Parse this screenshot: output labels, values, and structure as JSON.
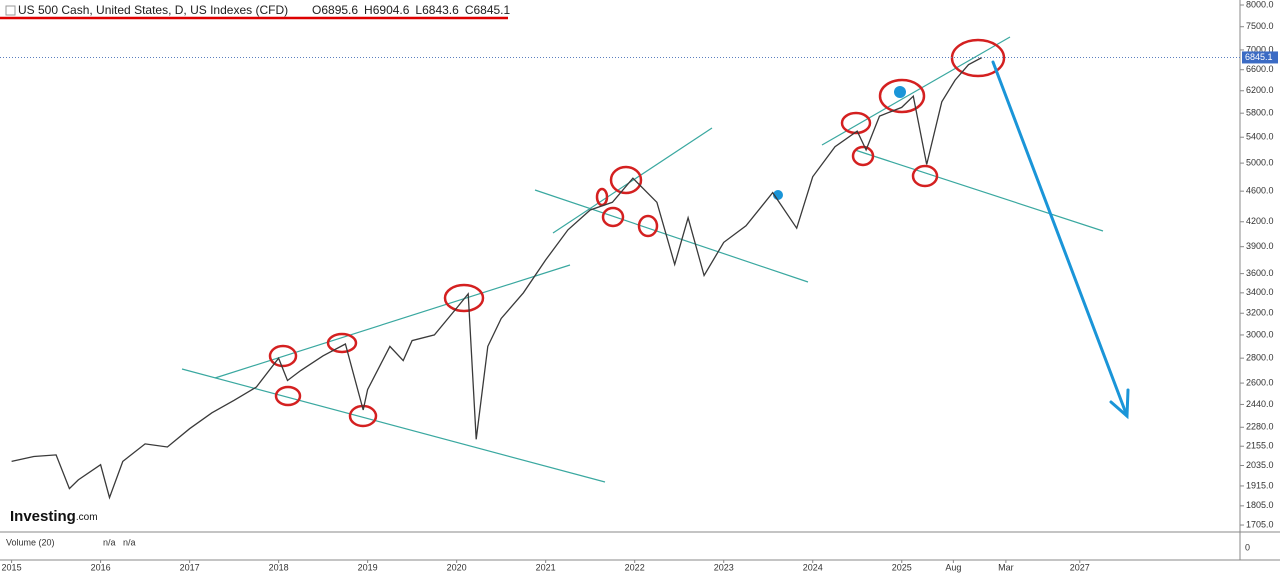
{
  "chart_data": {
    "type": "line",
    "title": "US 500 Cash, United States, D, US Indexes (CFD)",
    "ohlc": [
      {
        "label": "O",
        "value": 6895.6
      },
      {
        "label": "H",
        "value": 6904.6
      },
      {
        "label": "L",
        "value": 6843.6
      },
      {
        "label": "C",
        "value": 6845.1
      }
    ],
    "watermark": [
      "Investing",
      ".com"
    ],
    "volume": {
      "label": "Volume (20)",
      "values": [
        "n/a",
        "n/a"
      ],
      "ticks": [
        0
      ]
    },
    "yscale": "log",
    "grid": false,
    "xlim": [
      2014.87,
      2028.8
    ],
    "ylim": [
      1670,
      8120
    ],
    "xticks": [
      2015,
      2016,
      2017,
      2018,
      2019,
      2020,
      2021,
      2022,
      2023,
      2024,
      2025,
      {
        "value": 2025.58,
        "label": "Aug"
      },
      {
        "value": 2026.17,
        "label": "Mar"
      },
      2027
    ],
    "yticks": [
      {
        "value": 8000,
        "label": "8000.0"
      },
      {
        "value": 7500,
        "label": "7500.0"
      },
      {
        "value": 7000,
        "label": "7000.0"
      },
      {
        "value": 6600,
        "label": "6600.0"
      },
      {
        "value": 6200,
        "label": "6200.0"
      },
      {
        "value": 5800,
        "label": "5800.0"
      },
      {
        "value": 5400,
        "label": "5400.0"
      },
      {
        "value": 5000,
        "label": "5000.0"
      },
      {
        "value": 4600,
        "label": "4600.0"
      },
      {
        "value": 4200,
        "label": "4200.0"
      },
      {
        "value": 3900,
        "label": "3900.0"
      },
      {
        "value": 3600,
        "label": "3600.0"
      },
      {
        "value": 3400,
        "label": "3400.0"
      },
      {
        "value": 3200,
        "label": "3200.0"
      },
      {
        "value": 3000,
        "label": "3000.0"
      },
      {
        "value": 2800,
        "label": "2800.0"
      },
      {
        "value": 2600,
        "label": "2600.0"
      },
      {
        "value": 2440,
        "label": "2440.0"
      },
      {
        "value": 2280,
        "label": "2280.0"
      },
      {
        "value": 2155,
        "label": "2155.0"
      },
      {
        "value": 2035,
        "label": "2035.0"
      },
      {
        "value": 1915,
        "label": "1915.0"
      },
      {
        "value": 1805,
        "label": "1805.0"
      },
      {
        "value": 1705,
        "label": "1705.0"
      }
    ],
    "x": [
      2015.0,
      2015.25,
      2015.5,
      2015.65,
      2015.75,
      2016.0,
      2016.1,
      2016.25,
      2016.5,
      2016.75,
      2017.0,
      2017.25,
      2017.5,
      2017.75,
      2018.0,
      2018.1,
      2018.25,
      2018.5,
      2018.75,
      2018.95,
      2019.0,
      2019.25,
      2019.4,
      2019.5,
      2019.75,
      2020.0,
      2020.13,
      2020.22,
      2020.35,
      2020.5,
      2020.75,
      2021.0,
      2021.25,
      2021.5,
      2021.75,
      2021.98,
      2022.25,
      2022.45,
      2022.6,
      2022.78,
      2023.0,
      2023.25,
      2023.55,
      2023.82,
      2024.0,
      2024.25,
      2024.5,
      2024.6,
      2024.75,
      2025.0,
      2025.13,
      2025.28,
      2025.45,
      2025.6,
      2025.75,
      2025.9
    ],
    "series": [
      {
        "name": "US 500 Cash",
        "color": "#3a3a3a",
        "values": [
          2060,
          2090,
          2100,
          1900,
          1950,
          2040,
          1850,
          2060,
          2170,
          2150,
          2270,
          2380,
          2470,
          2570,
          2800,
          2620,
          2700,
          2820,
          2920,
          2400,
          2550,
          2900,
          2780,
          2950,
          3000,
          3250,
          3390,
          2200,
          2900,
          3150,
          3400,
          3750,
          4100,
          4350,
          4450,
          4780,
          4450,
          3700,
          4250,
          3580,
          3950,
          4150,
          4580,
          4120,
          4800,
          5250,
          5500,
          5200,
          5750,
          5900,
          6100,
          4980,
          6000,
          6400,
          6700,
          6845.1
        ]
      }
    ],
    "last_price": 6845.1
  }
}
